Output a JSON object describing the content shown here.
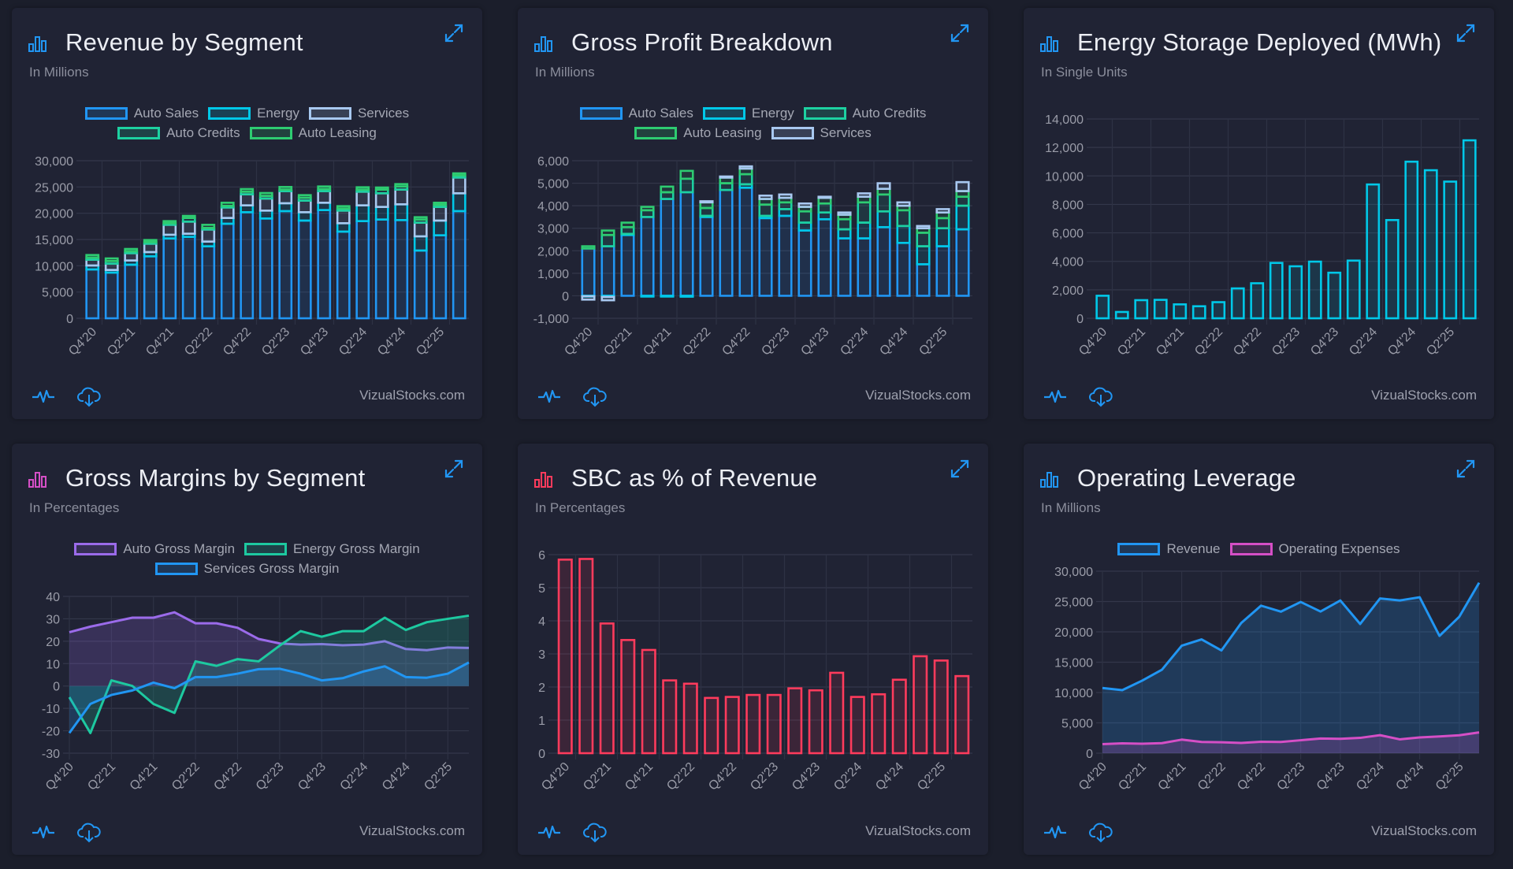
{
  "brand": "VizualStocks.com",
  "colors": {
    "accent": "#2196f3",
    "page_bg": "#1b1e2b",
    "card_bg": "#202334"
  },
  "cards": [
    {
      "title": "Revenue by Segment",
      "subtitle": "In Millions",
      "icon": "bar-chart-icon",
      "icon_color": "#2196f3"
    },
    {
      "title": "Gross Profit Breakdown",
      "subtitle": "In Millions",
      "icon": "bar-chart-icon",
      "icon_color": "#2196f3"
    },
    {
      "title": "Energy Storage Deployed (MWh)",
      "subtitle": "In Single Units",
      "icon": "bar-chart-icon",
      "icon_color": "#2196f3"
    },
    {
      "title": "Gross Margins by Segment",
      "subtitle": "In Percentages",
      "icon": "bar-chart-icon",
      "icon_color": "#d54fc6"
    },
    {
      "title": "SBC as % of Revenue",
      "subtitle": "In Percentages",
      "icon": "bar-chart-icon",
      "icon_color": "#ff3b5c"
    },
    {
      "title": "Operating Leverage",
      "subtitle": "In Millions",
      "icon": "bar-chart-icon",
      "icon_color": "#2196f3"
    }
  ],
  "chart_data": [
    {
      "type": "stacked-bar",
      "categories": [
        "Q4'20",
        "Q1'21",
        "Q2'21",
        "Q3'21",
        "Q4'21",
        "Q1'22",
        "Q2'22",
        "Q3'22",
        "Q4'22",
        "Q1'23",
        "Q2'23",
        "Q3'23",
        "Q4'23",
        "Q1'24",
        "Q2'24",
        "Q3'24",
        "Q4'24",
        "Q1'25",
        "Q2'25",
        "Q3'25"
      ],
      "x_tick_labels": [
        "Q4'20",
        "Q2'21",
        "Q4'21",
        "Q2'22",
        "Q4'22",
        "Q2'23",
        "Q4'23",
        "Q2'24",
        "Q4'24",
        "Q2'25"
      ],
      "ylim": [
        0,
        30000
      ],
      "yticks": [
        0,
        5000,
        10000,
        15000,
        20000,
        25000,
        30000
      ],
      "ytick_labels": [
        "0",
        "5,000",
        "10,000",
        "15,000",
        "20,000",
        "25,000",
        "30,000"
      ],
      "grid": true,
      "legend_position": "top",
      "series": [
        {
          "name": "Auto Sales",
          "color": "#2196f3",
          "values": [
            9300,
            8700,
            10200,
            11800,
            15200,
            15500,
            13700,
            18000,
            20200,
            19000,
            20400,
            18600,
            20600,
            16500,
            18500,
            18800,
            18700,
            12900,
            15800,
            20400
          ]
        },
        {
          "name": "Energy",
          "color": "#00c8e8",
          "values": [
            750,
            500,
            800,
            800,
            700,
            600,
            900,
            1100,
            1300,
            1500,
            1500,
            1600,
            1400,
            1600,
            3000,
            2400,
            3000,
            2700,
            2800,
            3400
          ]
        },
        {
          "name": "Services",
          "color": "#a8c8f0",
          "values": [
            1100,
            1200,
            1400,
            1600,
            1900,
            2300,
            2300,
            2000,
            2100,
            2300,
            2300,
            2200,
            2200,
            2400,
            2600,
            2600,
            2800,
            2600,
            2600,
            3000
          ]
        },
        {
          "name": "Auto Credits",
          "color": "#1dd1a1",
          "values": [
            400,
            500,
            350,
            300,
            300,
            700,
            300,
            300,
            500,
            500,
            300,
            550,
            400,
            400,
            400,
            700,
            600,
            600,
            400,
            400
          ]
        },
        {
          "name": "Auto Leasing",
          "color": "#2ecc71",
          "values": [
            500,
            500,
            450,
            400,
            400,
            400,
            600,
            600,
            500,
            550,
            500,
            500,
            500,
            450,
            450,
            400,
            450,
            450,
            400,
            400
          ]
        }
      ]
    },
    {
      "type": "stacked-bar",
      "categories": [
        "Q4'20",
        "Q1'21",
        "Q2'21",
        "Q3'21",
        "Q4'21",
        "Q1'22",
        "Q2'22",
        "Q3'22",
        "Q4'22",
        "Q1'23",
        "Q2'23",
        "Q3'23",
        "Q4'23",
        "Q1'24",
        "Q2'24",
        "Q3'24",
        "Q4'24",
        "Q1'25",
        "Q2'25",
        "Q3'25"
      ],
      "x_tick_labels": [
        "Q4'20",
        "Q2'21",
        "Q4'21",
        "Q2'22",
        "Q4'22",
        "Q2'23",
        "Q4'23",
        "Q2'24",
        "Q4'24",
        "Q2'25"
      ],
      "ylim": [
        -1000,
        6000
      ],
      "yticks": [
        -1000,
        0,
        1000,
        2000,
        3000,
        4000,
        5000,
        6000
      ],
      "ytick_labels": [
        "-1,000",
        "0",
        "1,000",
        "2,000",
        "3,000",
        "4,000",
        "5,000",
        "6,000"
      ],
      "grid": true,
      "legend_position": "top",
      "series": [
        {
          "name": "Auto Sales",
          "color": "#2196f3",
          "values": [
            2100,
            2200,
            2700,
            3500,
            4300,
            4600,
            3500,
            4700,
            4800,
            3450,
            3550,
            2900,
            3400,
            2550,
            2550,
            3050,
            2350,
            1400,
            2200,
            2950
          ]
        },
        {
          "name": "Energy",
          "color": "#00c8e8",
          "values": [
            -20,
            -50,
            50,
            -10,
            -20,
            -40,
            50,
            0,
            150,
            100,
            300,
            350,
            300,
            400,
            700,
            700,
            750,
            800,
            800,
            1050
          ]
        },
        {
          "name": "Auto Credits",
          "color": "#1dd1a1",
          "values": [
            0,
            500,
            300,
            300,
            300,
            600,
            350,
            300,
            450,
            500,
            300,
            500,
            400,
            450,
            900,
            750,
            700,
            600,
            450,
            400
          ]
        },
        {
          "name": "Auto Leasing",
          "color": "#2ecc71",
          "values": [
            100,
            200,
            200,
            150,
            250,
            350,
            250,
            250,
            250,
            250,
            200,
            200,
            250,
            200,
            250,
            250,
            200,
            200,
            250,
            250
          ]
        },
        {
          "name": "Services",
          "color": "#a8c8f0",
          "values": [
            -150,
            -150,
            0,
            0,
            0,
            0,
            50,
            50,
            100,
            150,
            150,
            150,
            50,
            100,
            150,
            250,
            150,
            100,
            150,
            400
          ]
        }
      ]
    },
    {
      "type": "bar",
      "categories": [
        "Q4'20",
        "Q1'21",
        "Q2'21",
        "Q3'21",
        "Q4'21",
        "Q1'22",
        "Q2'22",
        "Q3'22",
        "Q4'22",
        "Q1'23",
        "Q2'23",
        "Q3'23",
        "Q4'23",
        "Q1'24",
        "Q2'24",
        "Q3'24",
        "Q4'24",
        "Q1'25",
        "Q2'25",
        "Q3'25"
      ],
      "x_tick_labels": [
        "Q4'20",
        "Q2'21",
        "Q4'21",
        "Q2'22",
        "Q4'22",
        "Q2'23",
        "Q4'23",
        "Q2'24",
        "Q4'24",
        "Q2'25"
      ],
      "ylim": [
        0,
        14000
      ],
      "yticks": [
        0,
        2000,
        4000,
        6000,
        8000,
        10000,
        12000,
        14000
      ],
      "ytick_labels": [
        "0",
        "2,000",
        "4,000",
        "6,000",
        "8,000",
        "10,000",
        "12,000",
        "14,000"
      ],
      "grid": true,
      "series": [
        {
          "color": "#00c8e8",
          "values": [
            1584,
            445,
            1274,
            1295,
            978,
            846,
            1133,
            2100,
            2462,
            3889,
            3653,
            3980,
            3202,
            4053,
            9400,
            6900,
            11000,
            10400,
            9600,
            12500
          ]
        }
      ]
    },
    {
      "type": "area",
      "categories": [
        "Q4'20",
        "Q1'21",
        "Q2'21",
        "Q3'21",
        "Q4'21",
        "Q1'22",
        "Q2'22",
        "Q3'22",
        "Q4'22",
        "Q1'23",
        "Q2'23",
        "Q3'23",
        "Q4'23",
        "Q1'24",
        "Q2'24",
        "Q3'24",
        "Q4'24",
        "Q1'25",
        "Q2'25",
        "Q3'25"
      ],
      "x_tick_labels": [
        "Q4'20",
        "Q2'21",
        "Q4'21",
        "Q2'22",
        "Q4'22",
        "Q2'23",
        "Q4'23",
        "Q2'24",
        "Q4'24",
        "Q2'25"
      ],
      "ylim": [
        -30,
        40
      ],
      "yticks": [
        -30,
        -20,
        -10,
        0,
        10,
        20,
        30,
        40
      ],
      "ytick_labels": [
        "-30",
        "-20",
        "-10",
        "0",
        "10",
        "20",
        "30",
        "40"
      ],
      "grid": true,
      "legend_position": "top",
      "series": [
        {
          "name": "Auto Gross Margin",
          "color": "#9b6bea",
          "values": [
            24,
            26.5,
            28.5,
            30.5,
            30.5,
            32.9,
            28,
            28,
            26,
            21,
            19,
            18.5,
            18.7,
            18.2,
            18.5,
            20,
            16.5,
            16,
            17.2,
            17
          ]
        },
        {
          "name": "Energy Gross Margin",
          "color": "#1dc9a0",
          "values": [
            -5,
            -21,
            2.5,
            0,
            -8,
            -12,
            11,
            9,
            12,
            11,
            18,
            24.5,
            22,
            24.5,
            24.5,
            30.5,
            25,
            28.5,
            30,
            31.4
          ]
        },
        {
          "name": "Services Gross Margin",
          "color": "#2196f3",
          "values": [
            -21,
            -8,
            -4,
            -2,
            1.5,
            -1,
            4,
            4,
            5.5,
            7.5,
            7.7,
            5.5,
            2.5,
            3.5,
            6.5,
            8.8,
            4,
            3.7,
            5.5,
            10.5
          ]
        }
      ]
    },
    {
      "type": "bar",
      "categories": [
        "Q4'20",
        "Q1'21",
        "Q2'21",
        "Q3'21",
        "Q4'21",
        "Q1'22",
        "Q2'22",
        "Q3'22",
        "Q4'22",
        "Q1'23",
        "Q2'23",
        "Q3'23",
        "Q4'23",
        "Q1'24",
        "Q2'24",
        "Q3'24",
        "Q4'24",
        "Q1'25",
        "Q2'25",
        "Q3'25"
      ],
      "x_tick_labels": [
        "Q4'20",
        "Q2'21",
        "Q4'21",
        "Q2'22",
        "Q4'22",
        "Q2'23",
        "Q4'23",
        "Q2'24",
        "Q4'24",
        "Q2'25"
      ],
      "ylim": [
        0,
        6
      ],
      "yticks": [
        0,
        1,
        2,
        3,
        4,
        5,
        6
      ],
      "ytick_labels": [
        "0",
        "1",
        "2",
        "3",
        "4",
        "5",
        "6"
      ],
      "grid": true,
      "series": [
        {
          "color": "#ff3b5c",
          "values": [
            5.85,
            5.87,
            3.92,
            3.42,
            3.12,
            2.2,
            2.1,
            1.67,
            1.7,
            1.76,
            1.76,
            1.96,
            1.9,
            2.43,
            1.7,
            1.78,
            2.22,
            2.93,
            2.8,
            2.33
          ]
        }
      ]
    },
    {
      "type": "area",
      "categories": [
        "Q4'20",
        "Q1'21",
        "Q2'21",
        "Q3'21",
        "Q4'21",
        "Q1'22",
        "Q2'22",
        "Q3'22",
        "Q4'22",
        "Q1'23",
        "Q2'23",
        "Q3'23",
        "Q4'23",
        "Q1'24",
        "Q2'24",
        "Q3'24",
        "Q4'24",
        "Q1'25",
        "Q2'25",
        "Q3'25"
      ],
      "x_tick_labels": [
        "Q4'20",
        "Q2'21",
        "Q4'21",
        "Q2'22",
        "Q4'22",
        "Q2'23",
        "Q4'23",
        "Q2'24",
        "Q4'24",
        "Q2'25"
      ],
      "ylim": [
        0,
        30000
      ],
      "yticks": [
        0,
        5000,
        10000,
        15000,
        20000,
        25000,
        30000
      ],
      "ytick_labels": [
        "0",
        "5,000",
        "10,000",
        "15,000",
        "20,000",
        "25,000",
        "30,000"
      ],
      "grid": true,
      "legend_position": "top",
      "series": [
        {
          "name": "Revenue",
          "color": "#2196f3",
          "values": [
            10744,
            10389,
            11958,
            13757,
            17719,
            18756,
            16934,
            21454,
            24318,
            23329,
            24927,
            23350,
            25167,
            21301,
            25500,
            25182,
            25707,
            19335,
            22496,
            28095
          ]
        },
        {
          "name": "Operating Expenses",
          "color": "#d54fc6",
          "values": [
            1491,
            1621,
            1562,
            1656,
            2234,
            1857,
            1808,
            1694,
            1876,
            1847,
            2134,
            2414,
            2374,
            2525,
            2973,
            2280,
            2596,
            2754,
            2955,
            3430
          ]
        }
      ]
    }
  ]
}
